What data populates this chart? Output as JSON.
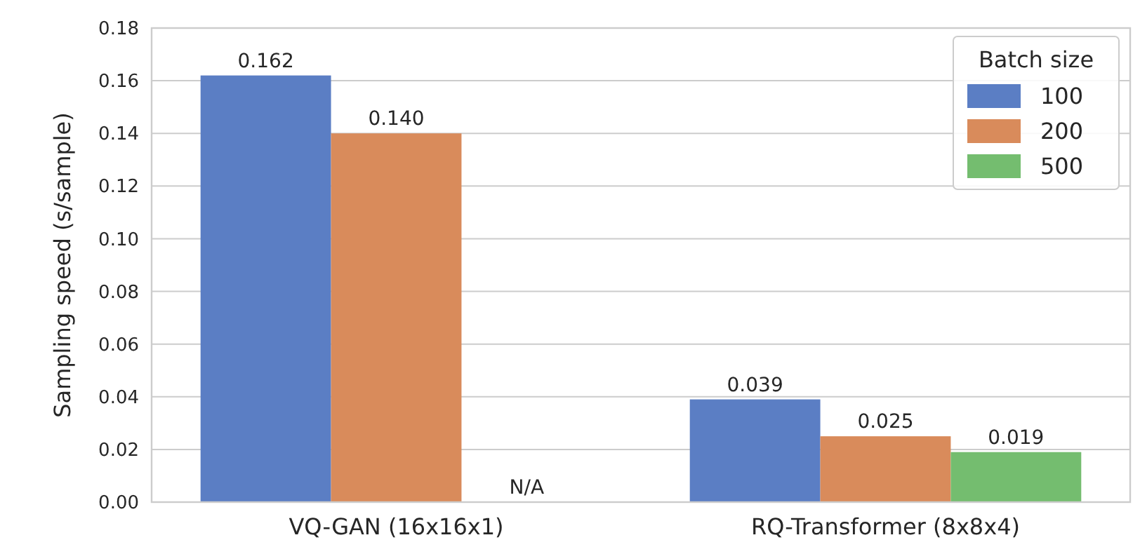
{
  "chart_data": {
    "type": "bar",
    "ylabel": "Sampling speed (s/sample)",
    "legend_title": "Batch size",
    "categories": [
      "VQ-GAN (16x16x1)",
      "RQ-Transformer (8x8x4)"
    ],
    "series": [
      {
        "name": "100",
        "color": "#5b7ec4",
        "values": [
          0.162,
          0.039
        ],
        "value_labels": [
          "0.162",
          "0.039"
        ]
      },
      {
        "name": "200",
        "color": "#d98b5b",
        "values": [
          0.14,
          0.025
        ],
        "value_labels": [
          "0.140",
          "0.025"
        ]
      },
      {
        "name": "500",
        "color": "#74bd6f",
        "values": [
          null,
          0.019
        ],
        "value_labels": [
          "N/A",
          "0.019"
        ]
      }
    ],
    "ylim": [
      0,
      0.18
    ],
    "yticks": [
      {
        "value": 0,
        "label": "0.00"
      },
      {
        "value": 0.02,
        "label": "0.02"
      },
      {
        "value": 0.04,
        "label": "0.04"
      },
      {
        "value": 0.06,
        "label": "0.06"
      },
      {
        "value": 0.08,
        "label": "0.08"
      },
      {
        "value": 0.1,
        "label": "0.10"
      },
      {
        "value": 0.12,
        "label": "0.12"
      },
      {
        "value": 0.14,
        "label": "0.14"
      },
      {
        "value": 0.16,
        "label": "0.16"
      },
      {
        "value": 0.18,
        "label": "0.18"
      }
    ],
    "grid": "y",
    "legend": "top right"
  }
}
